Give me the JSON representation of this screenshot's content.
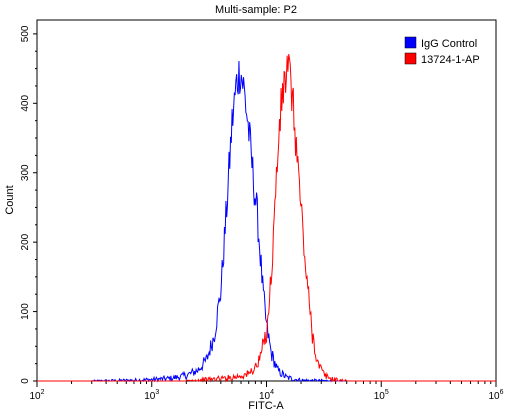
{
  "chart_data": {
    "type": "line",
    "title": "Multi-sample: P2",
    "xlabel": "FITC-A",
    "ylabel": "Count",
    "x_scale": "log",
    "xlim": [
      100,
      1000000
    ],
    "ylim": [
      0,
      520
    ],
    "grid": false,
    "legend_position": "top-right",
    "x_ticks": [
      {
        "value": 100,
        "base": "10",
        "exp": "2"
      },
      {
        "value": 1000,
        "base": "10",
        "exp": "3"
      },
      {
        "value": 10000,
        "base": "10",
        "exp": "4"
      },
      {
        "value": 100000,
        "base": "10",
        "exp": "5"
      },
      {
        "value": 1000000,
        "base": "10",
        "exp": "6"
      }
    ],
    "y_ticks": [
      "0",
      "100",
      "200",
      "300",
      "400",
      "500"
    ],
    "series": [
      {
        "name": "IgG Control",
        "color": "#0000ff",
        "points": [
          [
            100,
            0
          ],
          [
            300,
            0
          ],
          [
            700,
            1
          ],
          [
            1000,
            2
          ],
          [
            1500,
            4
          ],
          [
            2000,
            8
          ],
          [
            2500,
            15
          ],
          [
            3000,
            30
          ],
          [
            3500,
            65
          ],
          [
            4000,
            130
          ],
          [
            4500,
            250
          ],
          [
            5000,
            370
          ],
          [
            5500,
            430
          ],
          [
            5900,
            449
          ],
          [
            6300,
            425
          ],
          [
            6800,
            380
          ],
          [
            7300,
            330
          ],
          [
            7800,
            280
          ],
          [
            8300,
            240
          ],
          [
            8800,
            185
          ],
          [
            9300,
            130
          ],
          [
            10000,
            80
          ],
          [
            11000,
            40
          ],
          [
            12500,
            15
          ],
          [
            15000,
            5
          ],
          [
            20000,
            1
          ],
          [
            40000,
            0
          ],
          [
            1000000,
            0
          ]
        ]
      },
      {
        "name": "13724-1-AP",
        "color": "#ff0000",
        "points": [
          [
            100,
            0
          ],
          [
            2000,
            0
          ],
          [
            3000,
            2
          ],
          [
            5000,
            5
          ],
          [
            7000,
            10
          ],
          [
            8500,
            25
          ],
          [
            10000,
            70
          ],
          [
            11000,
            150
          ],
          [
            12000,
            270
          ],
          [
            13000,
            370
          ],
          [
            14000,
            420
          ],
          [
            15000,
            445
          ],
          [
            15500,
            449
          ],
          [
            16500,
            420
          ],
          [
            18000,
            350
          ],
          [
            20000,
            250
          ],
          [
            22000,
            160
          ],
          [
            25000,
            70
          ],
          [
            28000,
            25
          ],
          [
            32000,
            8
          ],
          [
            38000,
            2
          ],
          [
            50000,
            0
          ],
          [
            1000000,
            0
          ]
        ]
      }
    ]
  }
}
